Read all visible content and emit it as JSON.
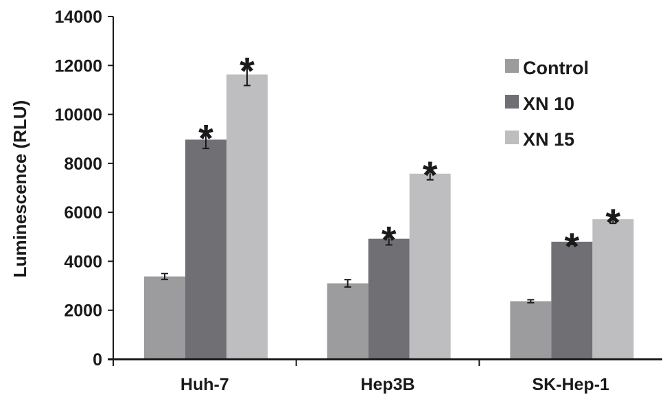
{
  "chart_data": {
    "type": "bar",
    "title": "",
    "xlabel": "",
    "ylabel": "Luminescence (RLU)",
    "ylim": [
      0,
      14000
    ],
    "yticks": [
      0,
      2000,
      4000,
      6000,
      8000,
      10000,
      12000,
      14000
    ],
    "categories": [
      "Huh-7",
      "Hep3B",
      "SK-Hep-1"
    ],
    "series": [
      {
        "name": "Control",
        "color": "#9c9c9e",
        "values": [
          3380,
          3100,
          2370
        ],
        "errors": [
          120,
          150,
          60
        ],
        "significant": [
          false,
          false,
          false
        ]
      },
      {
        "name": "XN 10",
        "color": "#707074",
        "values": [
          8970,
          4920,
          4800
        ],
        "errors": [
          360,
          250,
          110
        ],
        "significant": [
          true,
          true,
          true
        ]
      },
      {
        "name": "XN 15",
        "color": "#bebec1",
        "values": [
          11630,
          7580,
          5720
        ],
        "errors": [
          450,
          250,
          170
        ],
        "significant": [
          true,
          true,
          true
        ]
      }
    ],
    "significance_marker": "*",
    "grid": false,
    "legend_position": "top-right"
  }
}
